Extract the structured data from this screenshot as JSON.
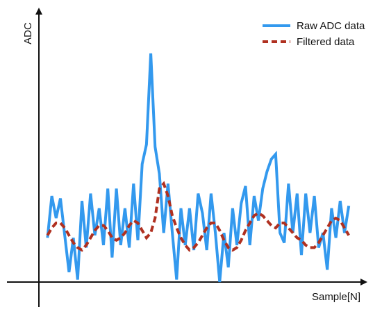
{
  "chart_data": {
    "type": "line",
    "title": "",
    "xlabel": "Sample[N]",
    "ylabel": "ADC",
    "grid": false,
    "legend": {
      "position": "top-right"
    },
    "x": [
      0,
      1,
      2,
      3,
      4,
      5,
      6,
      7,
      8,
      9,
      10,
      11,
      12,
      13,
      14,
      15,
      16,
      17,
      18,
      19,
      20,
      21,
      22,
      23,
      24,
      25,
      26,
      27,
      28,
      29,
      30,
      31,
      32,
      33,
      34,
      35,
      36,
      37,
      38,
      39,
      40,
      41,
      42,
      43,
      44,
      45,
      46,
      47,
      48,
      49,
      50,
      51,
      52,
      53,
      54,
      55,
      56,
      57,
      58,
      59,
      60,
      61,
      62,
      63,
      64,
      65,
      66,
      67,
      68,
      69,
      70
    ],
    "xlim": [
      -2,
      74
    ],
    "ylim": [
      0,
      100
    ],
    "series": [
      {
        "name": "Raw ADC data",
        "style": "solid",
        "color": "#3399ee",
        "values": [
          18,
          35,
          26,
          34,
          19,
          4,
          18,
          1,
          33,
          14,
          36,
          19,
          30,
          15,
          38,
          10,
          38,
          15,
          30,
          14,
          40,
          17,
          48,
          56,
          93,
          55,
          44,
          20,
          40,
          20,
          1,
          30,
          15,
          30,
          13,
          36,
          28,
          13,
          36,
          20,
          0,
          20,
          6,
          30,
          15,
          32,
          39,
          15,
          35,
          25,
          38,
          45,
          50,
          52,
          20,
          16,
          40,
          20,
          36,
          11,
          36,
          20,
          35,
          14,
          20,
          5,
          30,
          18,
          33,
          20,
          31
        ]
      },
      {
        "name": "Filtered data",
        "style": "dashed",
        "color": "#b03020",
        "values": [
          19,
          22,
          24,
          24,
          22,
          19,
          16,
          14,
          13,
          15,
          18,
          21,
          23,
          23,
          21,
          18,
          17,
          18,
          20,
          23,
          25,
          24,
          21,
          18,
          20,
          26,
          38,
          40,
          35,
          27,
          22,
          18,
          15,
          13,
          14,
          16,
          19,
          22,
          24,
          24,
          21,
          17,
          14,
          13,
          14,
          17,
          21,
          24,
          27,
          28,
          27,
          25,
          23,
          22,
          24,
          24,
          22,
          20,
          18,
          17,
          15,
          14,
          14,
          16,
          19,
          22,
          25,
          26,
          25,
          22,
          19
        ]
      }
    ]
  },
  "colors": {
    "axis": "#111111",
    "raw": "#3399ee",
    "filtered": "#b03020"
  }
}
